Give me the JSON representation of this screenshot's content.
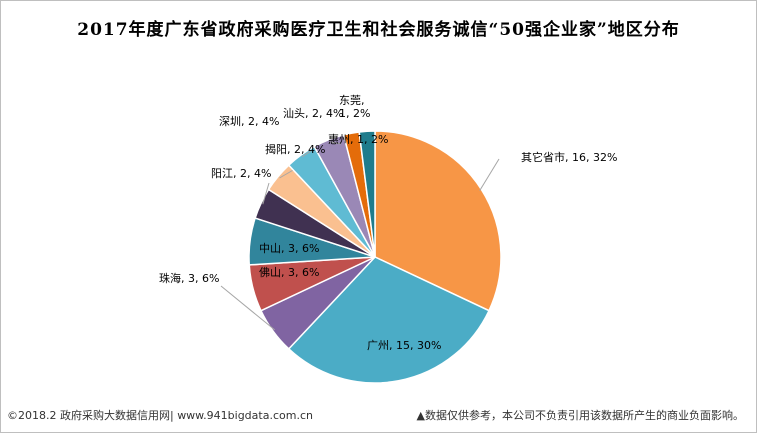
{
  "chart_data": {
    "type": "pie",
    "title": "2017年度广东省政府采购医疗卫生和社会服务诚信“50强企业家”地区分布",
    "slices": [
      {
        "label": "其它省市",
        "value": 16,
        "percent": "32%",
        "display": "其它省市, 16, 32%",
        "color": "#f79646"
      },
      {
        "label": "广州",
        "value": 15,
        "percent": "30%",
        "display": "广州, 15, 30%",
        "color": "#4bacc6"
      },
      {
        "label": "珠海",
        "value": 3,
        "percent": "6%",
        "display": "珠海, 3, 6%",
        "color": "#8064a2"
      },
      {
        "label": "佛山",
        "value": 3,
        "percent": "6%",
        "display": "佛山, 3, 6%",
        "color": "#c0504d"
      },
      {
        "label": "中山",
        "value": 3,
        "percent": "6%",
        "display": "中山, 3, 6%",
        "color": "#31859c"
      },
      {
        "label": "阳江",
        "value": 2,
        "percent": "4%",
        "display": "阳江, 2, 4%",
        "color": "#403151"
      },
      {
        "label": "揭阳",
        "value": 2,
        "percent": "4%",
        "display": "揭阳, 2, 4%",
        "color": "#fac090"
      },
      {
        "label": "深圳",
        "value": 2,
        "percent": "4%",
        "display": "深圳, 2, 4%",
        "color": "#5fbbd3"
      },
      {
        "label": "汕头",
        "value": 2,
        "percent": "4%",
        "display": "汕头, 2, 4%",
        "color": "#9a88b6"
      },
      {
        "label": "惠州",
        "value": 1,
        "percent": "2%",
        "display": "惠州, 1, 2%",
        "color": "#e46c0a"
      },
      {
        "label": "东莞",
        "value": 1,
        "percent": "2%",
        "display": "东莞,\n1, 2%",
        "color": "#1f7c8c"
      }
    ]
  },
  "footer": {
    "left": "©2018.2 政府采购大数据信用网| www.941bigdata.com.cn",
    "right": "▲数据仅供参考，本公司不负责引用该数据所产生的商业负面影响。"
  }
}
